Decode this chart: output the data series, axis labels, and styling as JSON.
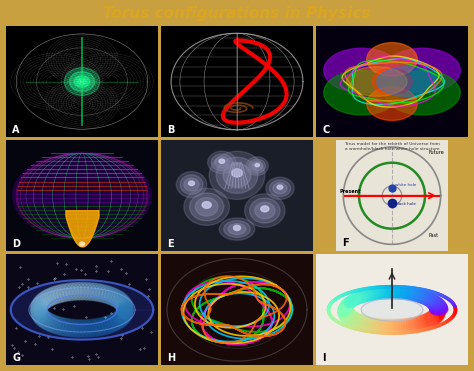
{
  "title": "Torus configurations in Physics",
  "title_color": "#DAA520",
  "title_fontsize": 11,
  "outer_bg": "#C8A040",
  "inner_bg": "#E8E0C8",
  "panel_bg": "#DDCCAA",
  "grid_rows": 3,
  "grid_cols": 3,
  "labels": [
    "A",
    "B",
    "C",
    "D",
    "E",
    "F",
    "G",
    "H",
    "I"
  ],
  "panel_colors": [
    "#000000",
    "#000000",
    "#0a0010",
    "#050510",
    "#2a2a3a",
    "#e8e4d8",
    "#0a0a18",
    "#1a0505",
    "#f0ece4"
  ],
  "figsize": [
    4.74,
    3.71
  ],
  "dpi": 100
}
